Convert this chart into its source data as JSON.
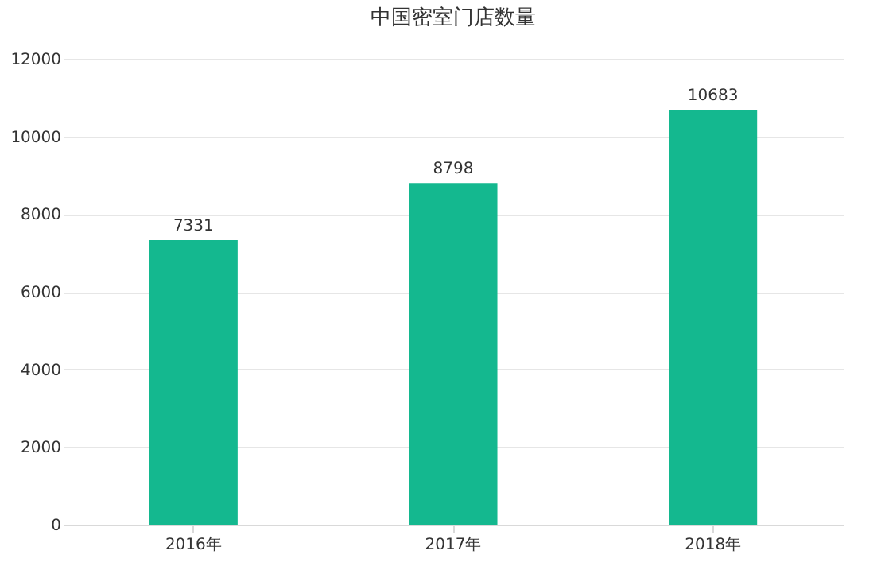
{
  "chart_data": {
    "type": "bar",
    "title": "中国密室门店数量",
    "categories": [
      "2016年",
      "2017年",
      "2018年"
    ],
    "values": [
      7331,
      8798,
      10683
    ],
    "color": "#14b88f",
    "ylim": [
      0,
      12000
    ],
    "yticks": [
      0,
      2000,
      4000,
      6000,
      8000,
      10000,
      12000
    ],
    "grid": "y",
    "data_labels": true
  }
}
